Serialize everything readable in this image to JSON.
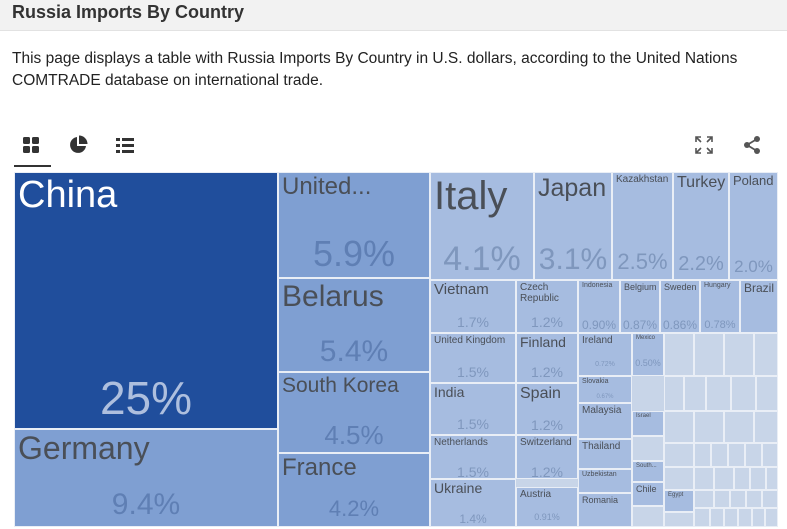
{
  "header": {
    "title": "Russia Imports By Country"
  },
  "description": "This page displays a table with Russia Imports By Country in U.S. dollars, according to the United Nations COMTRADE database on international trade.",
  "toolbar": {
    "treemap_icon": "grid-icon",
    "pie_icon": "pie-chart-icon",
    "list_icon": "list-icon",
    "expand_icon": "expand-icon",
    "share_icon": "share-icon"
  },
  "colors": {
    "dark": "#204e9c",
    "mid": "#7f9fd2",
    "light": "#a6bce0",
    "pale": "#c8d5e8"
  },
  "chart_data": {
    "type": "treemap",
    "tiles": [
      {
        "name": "China",
        "value": "25%"
      },
      {
        "name": "Germany",
        "value": "9.4%"
      },
      {
        "name": "United...",
        "value": "5.9%"
      },
      {
        "name": "Belarus",
        "value": "5.4%"
      },
      {
        "name": "South Korea",
        "value": "4.5%"
      },
      {
        "name": "France",
        "value": "4.2%"
      },
      {
        "name": "Italy",
        "value": "4.1%"
      },
      {
        "name": "Japan",
        "value": "3.1%"
      },
      {
        "name": "Kazakhstan",
        "value": "2.5%"
      },
      {
        "name": "Turkey",
        "value": "2.2%"
      },
      {
        "name": "Poland",
        "value": "2.0%"
      },
      {
        "name": "Vietnam",
        "value": "1.7%"
      },
      {
        "name": "Czech Republic",
        "value": "1.2%"
      },
      {
        "name": "Indonesia",
        "value": "0.90%"
      },
      {
        "name": "Belgium",
        "value": "0.87%"
      },
      {
        "name": "Sweden",
        "value": "0.86%"
      },
      {
        "name": "Hungary",
        "value": "0.78%"
      },
      {
        "name": "Brazil",
        "value": ""
      },
      {
        "name": "United Kingdom",
        "value": "1.5%"
      },
      {
        "name": "Finland",
        "value": "1.2%"
      },
      {
        "name": "Ireland",
        "value": "0.72%"
      },
      {
        "name": "Mexico",
        "value": "0.50%"
      },
      {
        "name": "Slovakia",
        "value": "0.67%"
      },
      {
        "name": "India",
        "value": "1.5%"
      },
      {
        "name": "Spain",
        "value": "1.2%"
      },
      {
        "name": "Malaysia",
        "value": ""
      },
      {
        "name": "Israel",
        "value": ""
      },
      {
        "name": "Netherlands",
        "value": "1.5%"
      },
      {
        "name": "Switzerland",
        "value": "1.2%"
      },
      {
        "name": "Thailand",
        "value": ""
      },
      {
        "name": "Uzbekistan",
        "value": ""
      },
      {
        "name": "South...",
        "value": ""
      },
      {
        "name": "Ukraine",
        "value": "1.4%"
      },
      {
        "name": "Austria",
        "value": "0.91%"
      },
      {
        "name": "Romania",
        "value": ""
      },
      {
        "name": "Chile",
        "value": ""
      },
      {
        "name": "Egypt",
        "value": ""
      }
    ]
  }
}
